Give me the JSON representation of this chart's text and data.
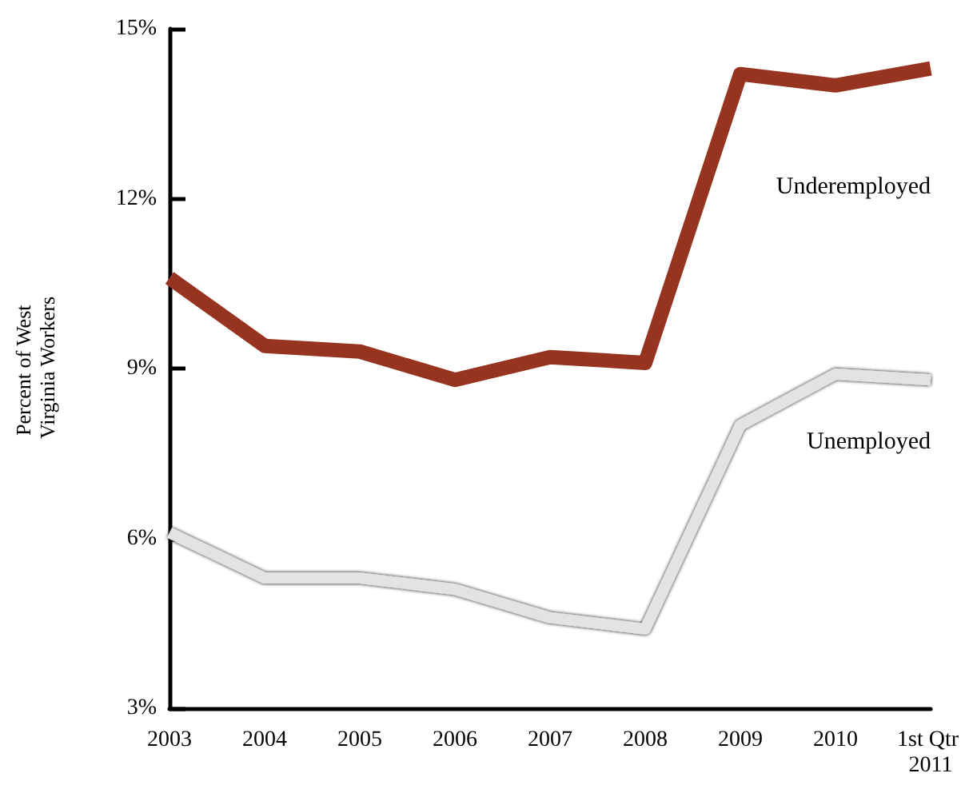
{
  "chart_data": {
    "type": "line",
    "ylabel": "Percent of West Virginia Workers",
    "categories": [
      "2003",
      "2004",
      "2005",
      "2006",
      "2007",
      "2008",
      "2009",
      "2010",
      "1st Qtr 2011"
    ],
    "series": [
      {
        "name": "Underemployed",
        "color": "#96341f",
        "values": [
          10.6,
          9.4,
          9.3,
          8.8,
          9.2,
          9.1,
          14.2,
          14.0,
          14.3
        ]
      },
      {
        "name": "Unemployed",
        "color": "#e3e3e3",
        "values": [
          6.1,
          5.3,
          5.3,
          5.1,
          4.6,
          4.4,
          8.0,
          8.9,
          8.8
        ]
      }
    ],
    "ylim": [
      3,
      15
    ],
    "yticks": [
      {
        "value": 3,
        "label": "3%"
      },
      {
        "value": 6,
        "label": "6%"
      },
      {
        "value": 9,
        "label": "9%"
      },
      {
        "value": 12,
        "label": "12%"
      },
      {
        "value": 15,
        "label": "15%"
      }
    ],
    "grid": false,
    "legend": false,
    "marker": "none",
    "line_style": "solid"
  }
}
